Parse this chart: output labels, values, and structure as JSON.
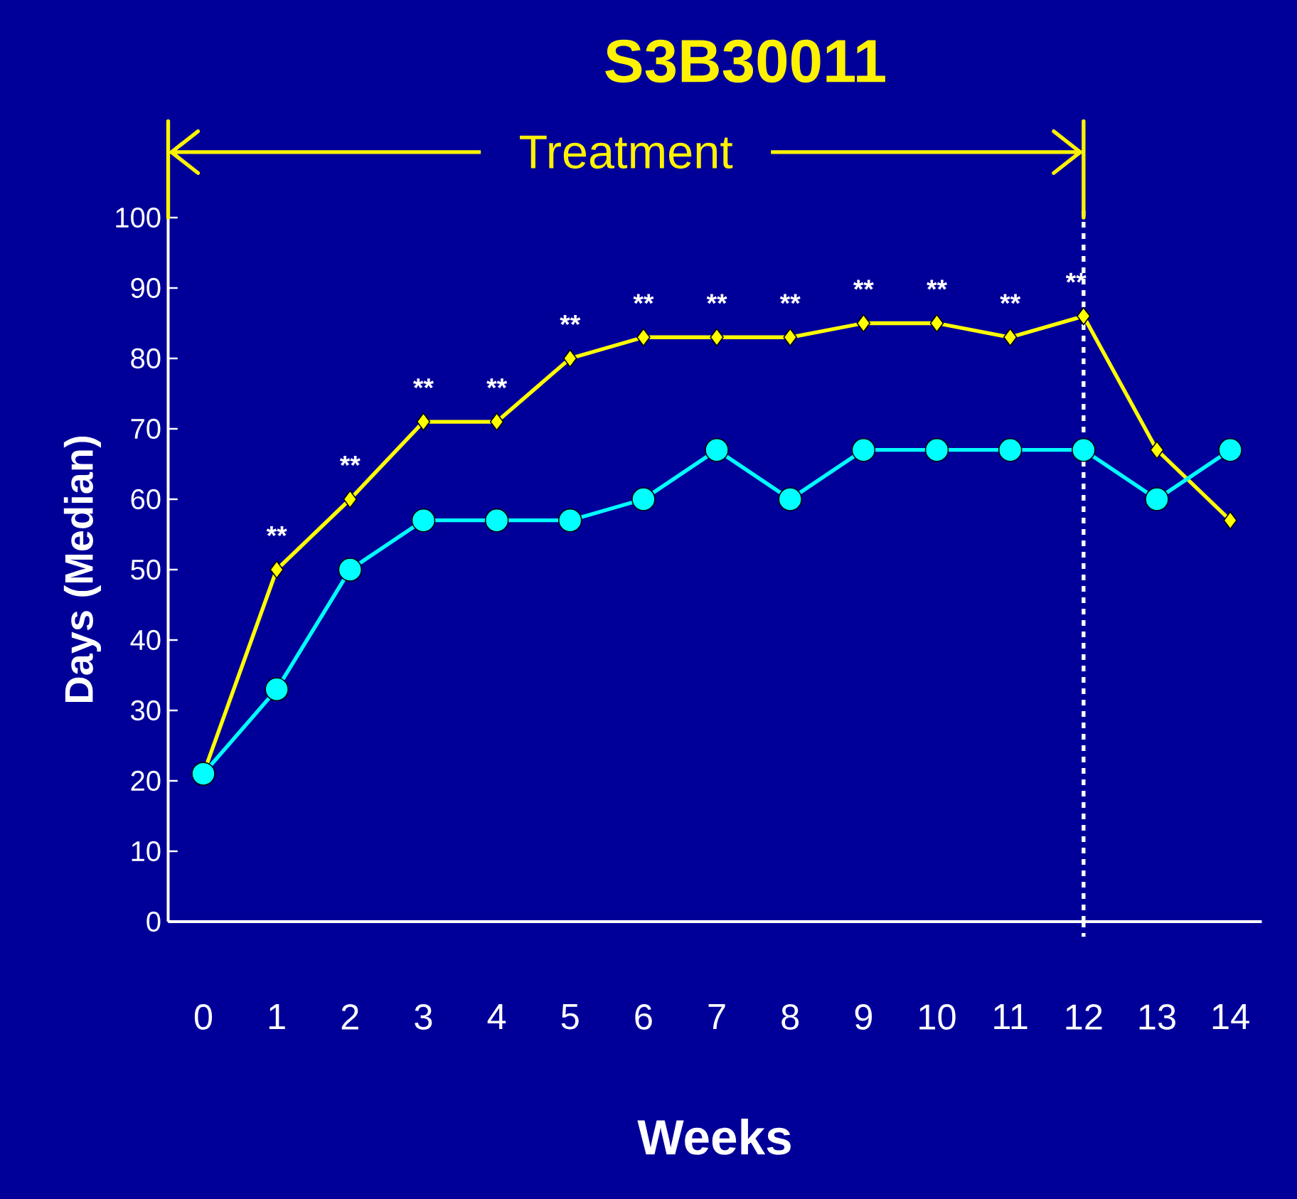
{
  "chart_data": {
    "type": "line",
    "title": "S3B30011",
    "xlabel": "Weeks",
    "ylabel": "Days (Median)",
    "categories": [
      "0",
      "1",
      "2",
      "3",
      "4",
      "5",
      "6",
      "7",
      "8",
      "9",
      "10",
      "11",
      "12",
      "13",
      "14"
    ],
    "series": [
      {
        "color": "#ffff00",
        "marker": "diamond",
        "values": [
          21,
          50,
          60,
          71,
          71,
          80,
          83,
          83,
          83,
          85,
          85,
          83,
          86,
          67,
          57
        ]
      },
      {
        "color": "#00ffff",
        "marker": "circle",
        "values": [
          21,
          33,
          50,
          57,
          57,
          57,
          60,
          67,
          60,
          67,
          67,
          67,
          67,
          60,
          67
        ]
      }
    ],
    "ylim": [
      0,
      100
    ],
    "yticks": [
      0,
      10,
      20,
      30,
      40,
      50,
      60,
      70,
      80,
      90,
      100
    ],
    "ref_lines": [
      {
        "axis": "x",
        "value": "12",
        "color": "#ffffff",
        "line_style": "dashed"
      }
    ],
    "annotations": [
      "Treatment",
      "**",
      "**",
      "**",
      "**",
      "**",
      "**",
      "**",
      "**",
      "**",
      "**",
      "**",
      "**"
    ],
    "grid": false,
    "line_style": "solid"
  }
}
